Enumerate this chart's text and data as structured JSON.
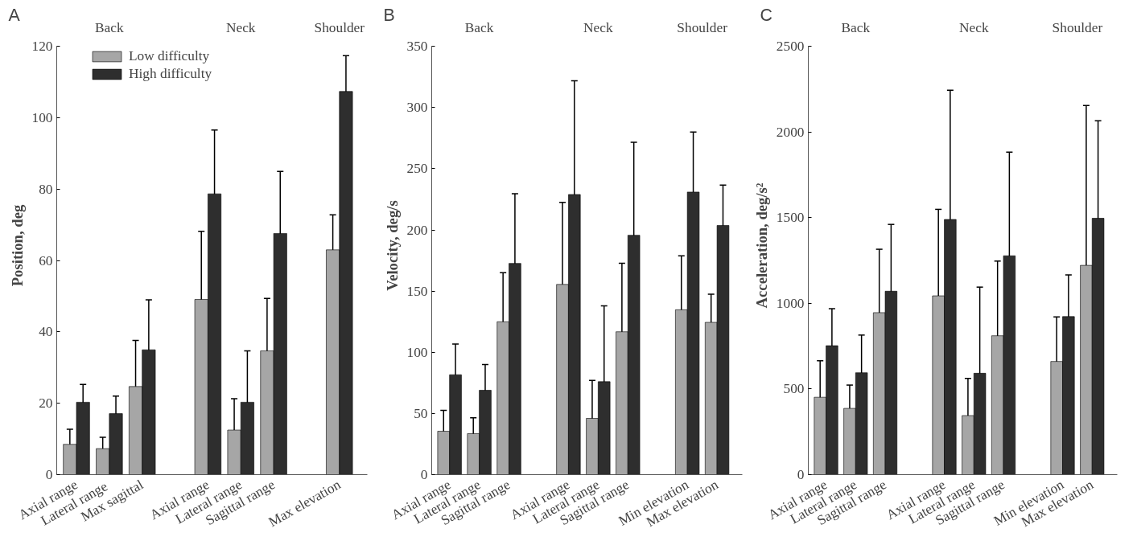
{
  "chart_data": [
    {
      "type": "bar",
      "title": "A",
      "ylabel": "Position, deg",
      "categories": [
        "Axial range",
        "Lateral  range",
        "Max sagittal",
        null,
        "Axial range",
        "Lateral range",
        "Sagittal range",
        null,
        "Max elevation"
      ],
      "annotations": [
        "Back",
        "Neck",
        "Shoulder"
      ],
      "ylim": [
        0,
        120
      ],
      "yticks": [
        0,
        20,
        40,
        60,
        80,
        100,
        120
      ],
      "grid": false,
      "legend": "top left",
      "series": [
        {
          "name": "Low difficulty",
          "color": "#a6a6a6",
          "values": [
            8.5,
            7.3,
            24.7,
            null,
            49.1,
            12.5,
            34.7,
            null,
            63
          ],
          "errors": [
            4.2,
            3.2,
            12.9,
            null,
            19.1,
            8.8,
            14.7,
            null,
            9.8
          ]
        },
        {
          "name": "High difficulty",
          "color": "#2e2e2e",
          "values": [
            20.3,
            17.1,
            35,
            null,
            78.7,
            20.3,
            67.6,
            null,
            107.4
          ],
          "errors": [
            5.0,
            4.9,
            14,
            null,
            17.9,
            14.4,
            17.4,
            null,
            10
          ]
        }
      ]
    },
    {
      "type": "bar",
      "title": "B",
      "ylabel": "Velocity, deg/s",
      "categories": [
        "Axial range",
        "Lateral range",
        "Sagittal range",
        null,
        "Axial range",
        "Lateral range",
        "Sagittal range",
        null,
        "Min elevation",
        "Max elevation"
      ],
      "annotations": [
        "Back",
        "Neck",
        "Shoulder"
      ],
      "ylim": [
        0,
        350
      ],
      "yticks": [
        0,
        50,
        100,
        150,
        200,
        250,
        300,
        350
      ],
      "grid": false,
      "legend": false,
      "series": [
        {
          "color": "#a6a6a6",
          "values": [
            35.5,
            33.5,
            125,
            null,
            155.5,
            46,
            116.8,
            null,
            134.8,
            124.5
          ],
          "errors": [
            17,
            13,
            40,
            null,
            67,
            31,
            56,
            null,
            44,
            23
          ]
        },
        {
          "color": "#2e2e2e",
          "values": [
            81.7,
            69,
            172.7,
            null,
            229,
            76,
            195.7,
            null,
            231,
            203.7
          ],
          "errors": [
            25,
            21,
            57,
            null,
            93,
            62,
            76,
            null,
            49,
            33
          ]
        }
      ]
    },
    {
      "type": "bar",
      "title": "C",
      "ylabel": "Acceleration, deg/s²",
      "categories": [
        "Axial range",
        "Lateral range",
        "Sagittal range",
        null,
        "Axial range",
        "Lateral range",
        "Sagittal range",
        null,
        "Min elevation",
        "Max elevation"
      ],
      "annotations": [
        "Back",
        "Neck",
        "Shoulder"
      ],
      "ylim": [
        0,
        2500
      ],
      "yticks": [
        0,
        500,
        1000,
        1500,
        2000,
        2500
      ],
      "grid": false,
      "legend": false,
      "series": [
        {
          "color": "#a6a6a6",
          "values": [
            452,
            387,
            946,
            null,
            1044,
            345,
            811,
            null,
            661,
            1222
          ],
          "errors": [
            213,
            136,
            370,
            null,
            505,
            217,
            436,
            null,
            260,
            933
          ]
        },
        {
          "color": "#2e2e2e",
          "values": [
            753,
            595,
            1071,
            null,
            1490,
            592,
            1278,
            null,
            923,
            1497
          ],
          "errors": [
            216,
            220,
            390,
            null,
            755,
            503,
            605,
            null,
            243,
            569
          ]
        }
      ]
    }
  ]
}
